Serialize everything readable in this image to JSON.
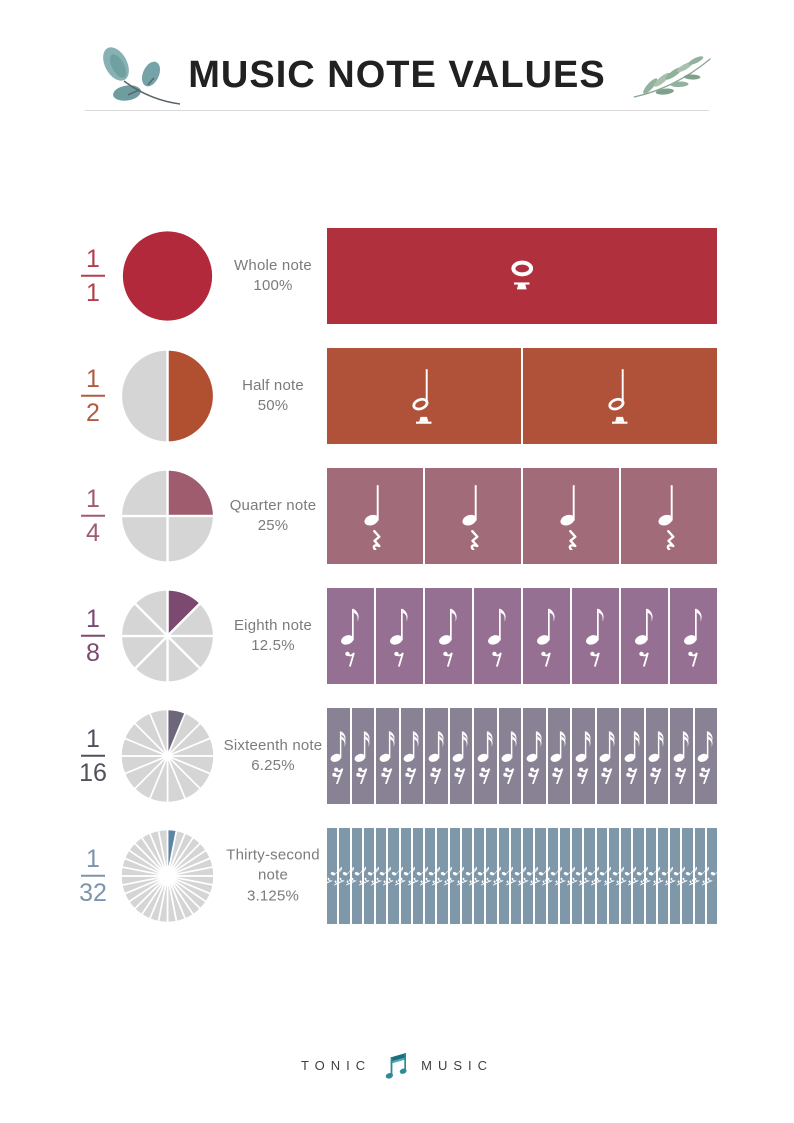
{
  "header": {
    "title": "MUSIC NOTE VALUES",
    "decoration_left": "watercolor-leaves-left-icon",
    "decoration_right": "watercolor-leaves-right-icon"
  },
  "rows": [
    {
      "name": "Whole note",
      "percent": "100%",
      "value": 1,
      "fraction": {
        "numerator": "1",
        "denominator": "1"
      },
      "label_lines": [
        "Whole note",
        "100%"
      ],
      "note_type": "whole",
      "note_icon": "whole-note-icon",
      "rest_icon": "whole-rest-icon",
      "count": 1,
      "colors": {
        "accent": "#B1293A",
        "bar": "#B1303E",
        "fraction": "#B2404B"
      }
    },
    {
      "name": "Half note",
      "percent": "50%",
      "value": 0.5,
      "fraction": {
        "numerator": "1",
        "denominator": "2"
      },
      "label_lines": [
        "Half note",
        "50%"
      ],
      "note_type": "half",
      "note_icon": "half-note-icon",
      "rest_icon": "half-rest-icon",
      "count": 2,
      "colors": {
        "accent": "#B05030",
        "bar": "#B0523A",
        "fraction": "#B05C44"
      }
    },
    {
      "name": "Quarter note",
      "percent": "25%",
      "value": 0.25,
      "fraction": {
        "numerator": "1",
        "denominator": "4"
      },
      "label_lines": [
        "Quarter note",
        "25%"
      ],
      "note_type": "quarter",
      "note_icon": "quarter-note-icon",
      "rest_icon": "quarter-rest-icon",
      "count": 4,
      "colors": {
        "accent": "#9F5C6E",
        "bar": "#A26B7A",
        "fraction": "#9F5C6E"
      }
    },
    {
      "name": "Eighth note",
      "percent": "12.5%",
      "value": 0.125,
      "fraction": {
        "numerator": "1",
        "denominator": "8"
      },
      "label_lines": [
        "Eighth note",
        "12.5%"
      ],
      "note_type": "eighth",
      "note_icon": "eighth-note-icon",
      "rest_icon": "eighth-rest-icon",
      "count": 8,
      "colors": {
        "accent": "#7C4970",
        "bar": "#967092",
        "fraction": "#7C4970"
      }
    },
    {
      "name": "Sixteenth note",
      "percent": "6.25%",
      "value": 0.0625,
      "fraction": {
        "numerator": "1",
        "denominator": "16"
      },
      "label_lines": [
        "Sixteenth note",
        "6.25%"
      ],
      "note_type": "sixteenth",
      "note_icon": "sixteenth-note-icon",
      "rest_icon": "sixteenth-rest-icon",
      "count": 16,
      "colors": {
        "accent": "#6E6679",
        "bar": "#898294",
        "fraction": "#534F5B"
      }
    },
    {
      "name": "Thirty-second note",
      "percent": "3.125%",
      "value": 0.03125,
      "fraction": {
        "numerator": "1",
        "denominator": "32"
      },
      "label_lines": [
        "Thirty-second",
        "note",
        "3.125%"
      ],
      "note_type": "thirtysecond",
      "note_icon": "thirty-second-note-icon",
      "rest_icon": "thirty-second-rest-icon",
      "count": 32,
      "colors": {
        "accent": "#5C85A4",
        "bar": "#7E97A9",
        "fraction": "#7D95AC"
      }
    }
  ],
  "pie_gray": "#D5D5D6",
  "label_color": "#7B7B7B",
  "chart_data": [
    {
      "type": "pie",
      "title": "Whole note",
      "slices_total": 1,
      "slices_filled": 1,
      "filled_percent": 100,
      "accent": "#B1293A",
      "gray": "#D5D5D6"
    },
    {
      "type": "pie",
      "title": "Half note",
      "slices_total": 2,
      "slices_filled": 1,
      "filled_percent": 50,
      "accent": "#B05030",
      "gray": "#D5D5D6"
    },
    {
      "type": "pie",
      "title": "Quarter note",
      "slices_total": 4,
      "slices_filled": 1,
      "filled_percent": 25,
      "accent": "#9F5C6E",
      "gray": "#D5D5D6"
    },
    {
      "type": "pie",
      "title": "Eighth note",
      "slices_total": 8,
      "slices_filled": 1,
      "filled_percent": 12.5,
      "accent": "#7C4970",
      "gray": "#D5D5D6"
    },
    {
      "type": "pie",
      "title": "Sixteenth note",
      "slices_total": 16,
      "slices_filled": 1,
      "filled_percent": 6.25,
      "accent": "#6E6679",
      "gray": "#D5D5D6"
    },
    {
      "type": "pie",
      "title": "Thirty-second note",
      "slices_total": 32,
      "slices_filled": 1,
      "filled_percent": 3.125,
      "accent": "#5C85A4",
      "gray": "#D5D5D6"
    }
  ],
  "footer": {
    "brand_left": "TONIC",
    "brand_right": "MUSIC",
    "logo_icon": "beamed-notes-icon",
    "logo_color": "#2E8A95"
  }
}
